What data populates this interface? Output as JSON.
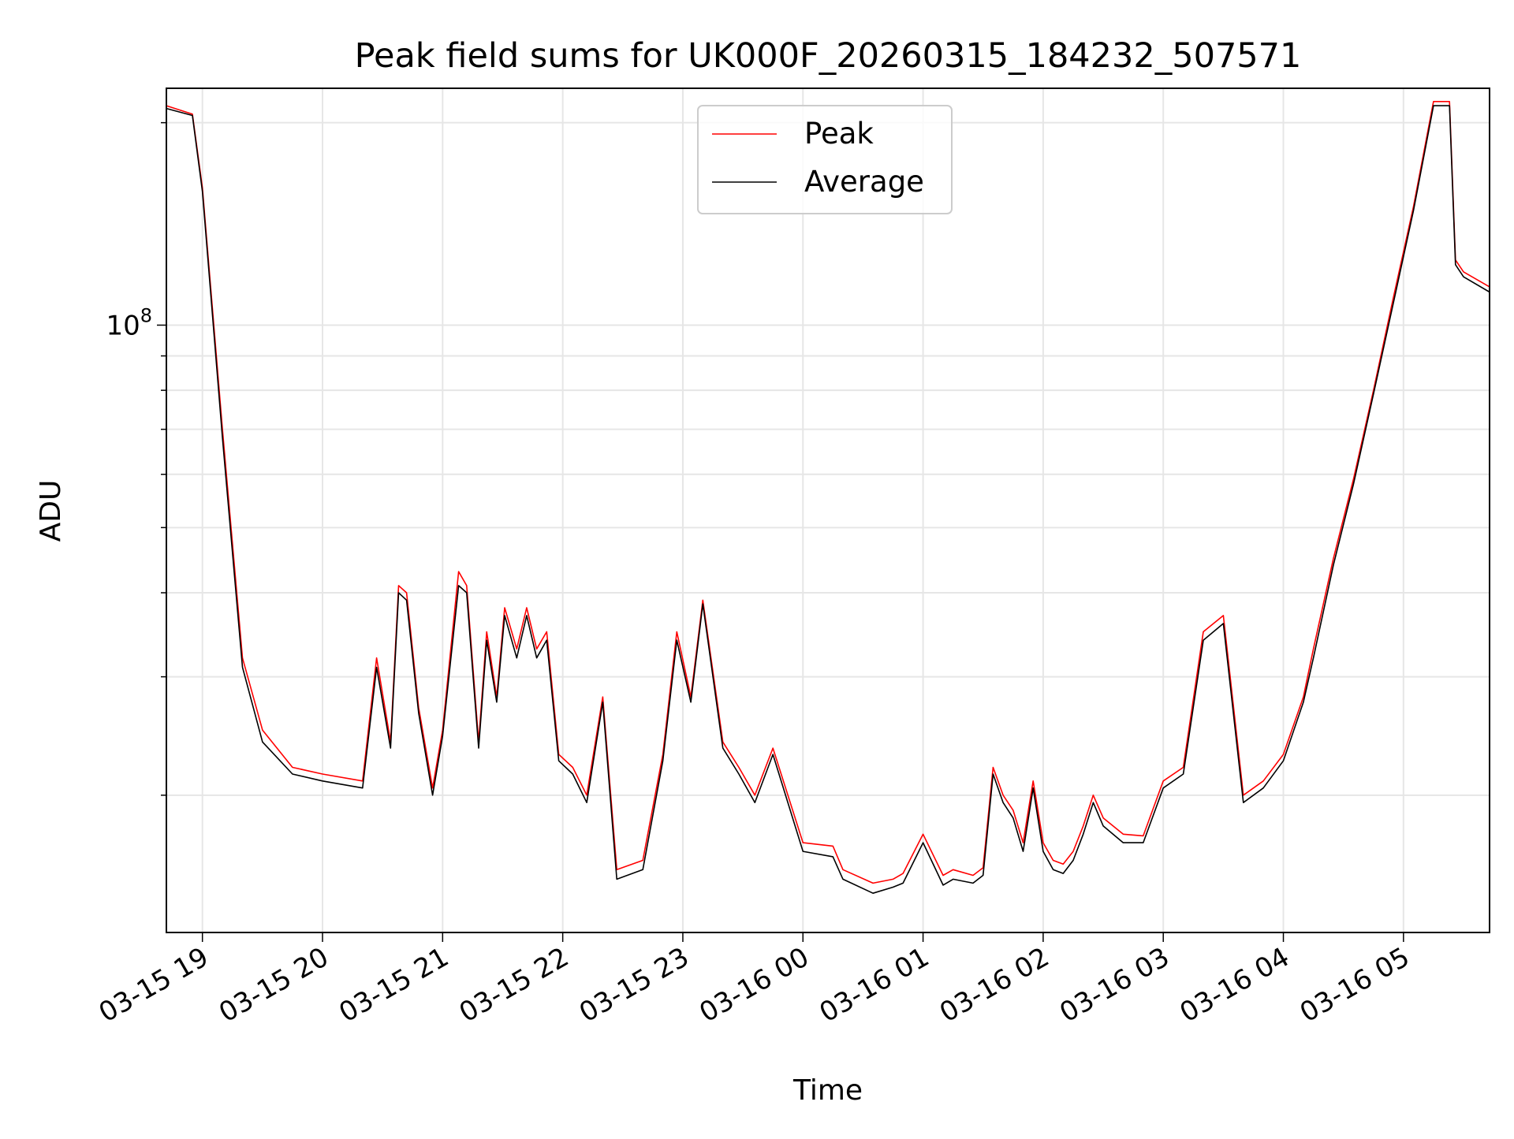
{
  "chart_data": {
    "type": "line",
    "title": "Peak field sums for UK000F_20260315_184232_507571",
    "xlabel": "Time",
    "ylabel": "ADU",
    "y_scale": "log",
    "ylim": [
      12500000,
      225000000
    ],
    "xlim": [
      "2026-03-15 18:42",
      "2026-03-16 05:43"
    ],
    "grid": true,
    "legend_position": "top-center",
    "x_ticks": [
      "03-15 19",
      "03-15 20",
      "03-15 21",
      "03-15 22",
      "03-15 23",
      "03-16 00",
      "03-16 01",
      "03-16 02",
      "03-16 03",
      "03-16 04",
      "03-16 05"
    ],
    "y_ticks": [
      {
        "value": 100000000,
        "label": "10^8"
      }
    ],
    "series": [
      {
        "name": "Peak",
        "color": "#ff0000",
        "x": [
          "2026-03-15 18:42",
          "2026-03-15 18:55",
          "2026-03-15 19:00",
          "2026-03-15 19:10",
          "2026-03-15 19:20",
          "2026-03-15 19:30",
          "2026-03-15 19:45",
          "2026-03-15 20:00",
          "2026-03-15 20:20",
          "2026-03-15 20:27",
          "2026-03-15 20:34",
          "2026-03-15 20:38",
          "2026-03-15 20:42",
          "2026-03-15 20:48",
          "2026-03-15 20:55",
          "2026-03-15 21:00",
          "2026-03-15 21:08",
          "2026-03-15 21:12",
          "2026-03-15 21:18",
          "2026-03-15 21:22",
          "2026-03-15 21:27",
          "2026-03-15 21:31",
          "2026-03-15 21:37",
          "2026-03-15 21:42",
          "2026-03-15 21:47",
          "2026-03-15 21:52",
          "2026-03-15 21:58",
          "2026-03-15 22:05",
          "2026-03-15 22:12",
          "2026-03-15 22:20",
          "2026-03-15 22:27",
          "2026-03-15 22:40",
          "2026-03-15 22:50",
          "2026-03-15 22:57",
          "2026-03-15 23:04",
          "2026-03-15 23:10",
          "2026-03-15 23:20",
          "2026-03-15 23:28",
          "2026-03-15 23:36",
          "2026-03-15 23:45",
          "2026-03-16 00:00",
          "2026-03-16 00:15",
          "2026-03-16 00:20",
          "2026-03-16 00:35",
          "2026-03-16 00:45",
          "2026-03-16 00:50",
          "2026-03-16 01:00",
          "2026-03-16 01:10",
          "2026-03-16 01:15",
          "2026-03-16 01:25",
          "2026-03-16 01:30",
          "2026-03-16 01:35",
          "2026-03-16 01:40",
          "2026-03-16 01:45",
          "2026-03-16 01:50",
          "2026-03-16 01:55",
          "2026-03-16 02:00",
          "2026-03-16 02:05",
          "2026-03-16 02:10",
          "2026-03-16 02:15",
          "2026-03-16 02:20",
          "2026-03-16 02:25",
          "2026-03-16 02:30",
          "2026-03-16 02:40",
          "2026-03-16 02:50",
          "2026-03-16 03:00",
          "2026-03-16 03:10",
          "2026-03-16 03:20",
          "2026-03-16 03:30",
          "2026-03-16 03:40",
          "2026-03-16 03:50",
          "2026-03-16 04:00",
          "2026-03-16 04:10",
          "2026-03-16 04:15",
          "2026-03-16 04:25",
          "2026-03-16 04:35",
          "2026-03-16 04:45",
          "2026-03-16 04:55",
          "2026-03-16 05:05",
          "2026-03-16 05:15",
          "2026-03-16 05:23",
          "2026-03-16 05:26",
          "2026-03-16 05:30",
          "2026-03-16 05:43"
        ],
        "y": [
          212000000,
          206000000,
          160000000,
          70000000,
          32000000,
          25000000,
          22000000,
          21500000,
          21000000,
          32000000,
          24000000,
          41000000,
          40000000,
          27000000,
          20500000,
          25000000,
          43000000,
          41000000,
          24000000,
          35000000,
          28000000,
          38000000,
          33000000,
          38000000,
          33000000,
          35000000,
          23000000,
          22000000,
          20000000,
          28000000,
          15500000,
          16000000,
          23000000,
          35000000,
          28000000,
          39000000,
          24000000,
          22000000,
          20000000,
          23500000,
          17000000,
          16800000,
          15500000,
          14800000,
          15000000,
          15300000,
          17500000,
          15200000,
          15500000,
          15200000,
          15600000,
          22000000,
          20000000,
          19000000,
          17000000,
          21000000,
          17000000,
          16000000,
          15800000,
          16500000,
          18000000,
          20000000,
          18500000,
          17500000,
          17400000,
          21000000,
          22000000,
          35000000,
          37000000,
          20000000,
          21000000,
          23000000,
          28000000,
          33000000,
          45000000,
          59000000,
          80000000,
          110000000,
          150000000,
          215000000,
          215000000,
          125000000,
          120000000,
          114000000
        ]
      },
      {
        "name": "Average",
        "color": "#000000",
        "x": [
          "2026-03-15 18:42",
          "2026-03-15 18:55",
          "2026-03-15 19:00",
          "2026-03-15 19:10",
          "2026-03-15 19:20",
          "2026-03-15 19:30",
          "2026-03-15 19:45",
          "2026-03-15 20:00",
          "2026-03-15 20:20",
          "2026-03-15 20:27",
          "2026-03-15 20:34",
          "2026-03-15 20:38",
          "2026-03-15 20:42",
          "2026-03-15 20:48",
          "2026-03-15 20:55",
          "2026-03-15 21:00",
          "2026-03-15 21:08",
          "2026-03-15 21:12",
          "2026-03-15 21:18",
          "2026-03-15 21:22",
          "2026-03-15 21:27",
          "2026-03-15 21:31",
          "2026-03-15 21:37",
          "2026-03-15 21:42",
          "2026-03-15 21:47",
          "2026-03-15 21:52",
          "2026-03-15 21:58",
          "2026-03-15 22:05",
          "2026-03-15 22:12",
          "2026-03-15 22:20",
          "2026-03-15 22:27",
          "2026-03-15 22:40",
          "2026-03-15 22:50",
          "2026-03-15 22:57",
          "2026-03-15 23:04",
          "2026-03-15 23:10",
          "2026-03-15 23:20",
          "2026-03-15 23:28",
          "2026-03-15 23:36",
          "2026-03-15 23:45",
          "2026-03-16 00:00",
          "2026-03-16 00:15",
          "2026-03-16 00:20",
          "2026-03-16 00:35",
          "2026-03-16 00:45",
          "2026-03-16 00:50",
          "2026-03-16 01:00",
          "2026-03-16 01:10",
          "2026-03-16 01:15",
          "2026-03-16 01:25",
          "2026-03-16 01:30",
          "2026-03-16 01:35",
          "2026-03-16 01:40",
          "2026-03-16 01:45",
          "2026-03-16 01:50",
          "2026-03-16 01:55",
          "2026-03-16 02:00",
          "2026-03-16 02:05",
          "2026-03-16 02:10",
          "2026-03-16 02:15",
          "2026-03-16 02:20",
          "2026-03-16 02:25",
          "2026-03-16 02:30",
          "2026-03-16 02:40",
          "2026-03-16 02:50",
          "2026-03-16 03:00",
          "2026-03-16 03:10",
          "2026-03-16 03:20",
          "2026-03-16 03:30",
          "2026-03-16 03:40",
          "2026-03-16 03:50",
          "2026-03-16 04:00",
          "2026-03-16 04:10",
          "2026-03-16 04:15",
          "2026-03-16 04:25",
          "2026-03-16 04:35",
          "2026-03-16 04:45",
          "2026-03-16 04:55",
          "2026-03-16 05:05",
          "2026-03-16 05:15",
          "2026-03-16 05:23",
          "2026-03-16 05:26",
          "2026-03-16 05:30",
          "2026-03-16 05:43"
        ],
        "y": [
          210000000,
          205000000,
          158000000,
          68000000,
          31000000,
          24000000,
          21500000,
          21000000,
          20500000,
          31000000,
          23500000,
          40000000,
          39000000,
          26500000,
          20000000,
          24500000,
          41000000,
          40000000,
          23500000,
          34000000,
          27500000,
          37000000,
          32000000,
          37000000,
          32000000,
          34000000,
          22500000,
          21500000,
          19500000,
          27500000,
          15000000,
          15500000,
          22500000,
          34000000,
          27500000,
          38500000,
          23500000,
          21500000,
          19500000,
          23000000,
          16500000,
          16200000,
          15000000,
          14300000,
          14600000,
          14800000,
          17000000,
          14700000,
          15000000,
          14800000,
          15200000,
          21500000,
          19500000,
          18500000,
          16500000,
          20500000,
          16500000,
          15500000,
          15300000,
          16000000,
          17500000,
          19500000,
          18000000,
          17000000,
          17000000,
          20500000,
          21500000,
          34000000,
          36000000,
          19500000,
          20500000,
          22500000,
          27500000,
          32000000,
          44000000,
          58000000,
          79000000,
          108000000,
          148000000,
          212000000,
          212000000,
          123000000,
          118000000,
          112000000
        ]
      }
    ]
  }
}
